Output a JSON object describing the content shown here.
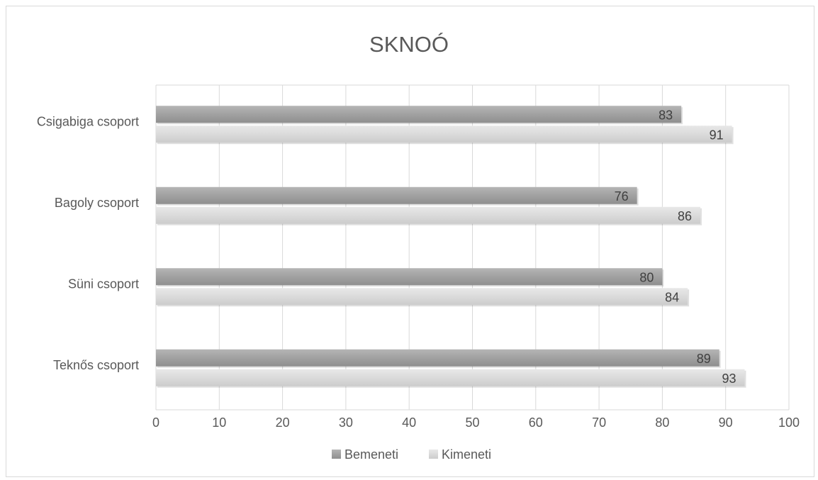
{
  "chart_data": {
    "type": "bar",
    "orientation": "horizontal",
    "title": "SKNOÓ",
    "categories": [
      "Csigabiga csoport",
      "Bagoly csoport",
      "Süni csoport",
      "Teknős csoport"
    ],
    "series": [
      {
        "name": "Bemeneti",
        "values": [
          83,
          76,
          80,
          89
        ],
        "color": "#a6a6a6"
      },
      {
        "name": "Kimeneti",
        "values": [
          91,
          86,
          84,
          93
        ],
        "color": "#dedede"
      }
    ],
    "xlim": [
      0,
      100
    ],
    "xticks": [
      "0",
      "10",
      "20",
      "30",
      "40",
      "50",
      "60",
      "70",
      "80",
      "90",
      "100"
    ],
    "grid": true,
    "legend_position": "bottom"
  }
}
